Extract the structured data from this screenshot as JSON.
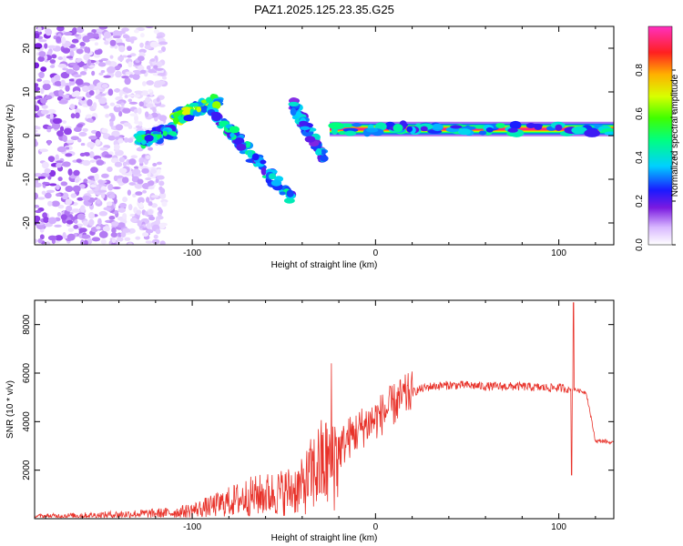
{
  "title": "PAZ1.2025.125.23.35.G25",
  "chart_data": [
    {
      "type": "heatmap",
      "xlabel": "Height of straight line (km)",
      "ylabel": "Frequency (Hz)",
      "xlim": [
        -186,
        130
      ],
      "ylim": [
        -25,
        25
      ],
      "xticks": [
        -100,
        0,
        100
      ],
      "yticks": [
        -20,
        -10,
        0,
        10,
        20
      ],
      "colorbar": {
        "label": "Normalized spectral amplitude",
        "range": [
          0,
          1
        ],
        "ticks": [
          "0.0",
          "0.2",
          "0.4",
          "0.6",
          "0.8"
        ]
      },
      "features": [
        {
          "name": "scattered noise",
          "x": [
            -186,
            -115
          ],
          "freq": [
            -25,
            25
          ],
          "amplitude": 0.1
        },
        {
          "name": "blob",
          "x": [
            -130,
            -110
          ],
          "freq": [
            -1,
            1
          ],
          "amplitude": 0.4
        },
        {
          "name": "upper branch",
          "x": [
            -110,
            -85
          ],
          "freq": [
            4,
            8
          ],
          "amplitude": 0.5
        },
        {
          "name": "lower branch",
          "x": [
            -90,
            -45
          ],
          "freq": [
            6,
            -15
          ],
          "amplitude": 0.35
        },
        {
          "name": "short branch",
          "x": [
            -45,
            -28
          ],
          "freq": [
            7,
            -5
          ],
          "amplitude": 0.3
        },
        {
          "name": "main carrier",
          "x": [
            -25,
            130
          ],
          "freq": [
            1,
            2
          ],
          "amplitude": 0.95
        }
      ]
    },
    {
      "type": "line",
      "xlabel": "Height of straight line (km)",
      "ylabel": "SNR (10 * v/v)",
      "xlim": [
        -186,
        130
      ],
      "ylim": [
        0,
        9000
      ],
      "xticks": [
        -100,
        0,
        100
      ],
      "yticks": [
        2000,
        4000,
        6000,
        8000
      ],
      "color": "#e8322a",
      "x": [
        -186,
        -170,
        -150,
        -130,
        -120,
        -110,
        -100,
        -90,
        -80,
        -70,
        -60,
        -50,
        -40,
        -35,
        -30,
        -25,
        -20,
        -15,
        -10,
        -5,
        0,
        5,
        10,
        15,
        20,
        25,
        30,
        40,
        50,
        60,
        70,
        80,
        90,
        100,
        105,
        110,
        115,
        120,
        125,
        130
      ],
      "values": [
        100,
        120,
        150,
        200,
        220,
        250,
        350,
        500,
        700,
        900,
        1000,
        1100,
        1300,
        1800,
        2200,
        2300,
        2800,
        3300,
        3600,
        3900,
        4100,
        4400,
        4700,
        5000,
        5200,
        5350,
        5450,
        5500,
        5500,
        5450,
        5450,
        5450,
        5400,
        5400,
        5350,
        5300,
        5200,
        3200,
        3200,
        3100
      ],
      "annotations": [
        {
          "x": -24,
          "value": 6400,
          "note": "spike"
        },
        {
          "x": 108,
          "value": 8900,
          "note": "spike"
        },
        {
          "x": 107,
          "value": 1800,
          "note": "dip"
        }
      ]
    }
  ]
}
